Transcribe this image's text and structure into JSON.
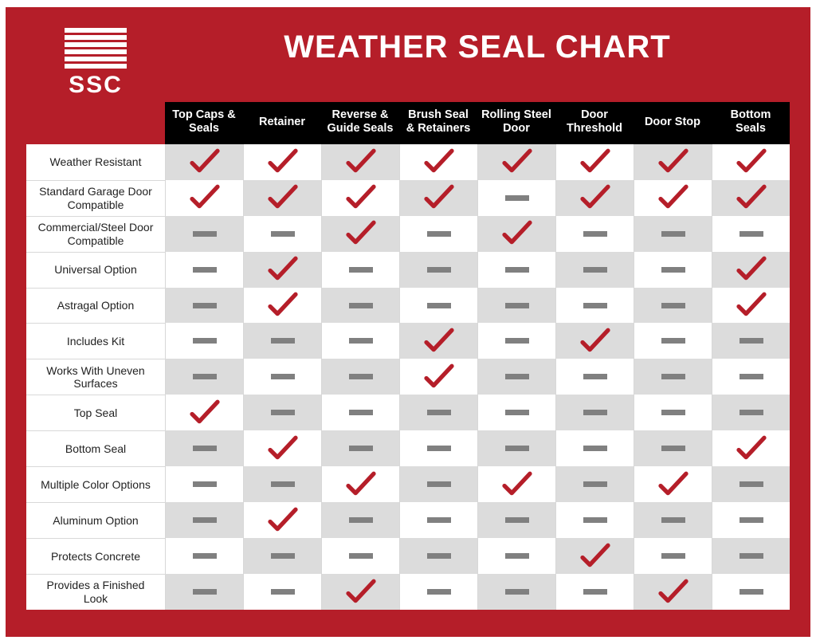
{
  "title": "WEATHER SEAL CHART",
  "logo_text": "SSC",
  "colors": {
    "frame_bg": "#b51e29",
    "header_bg": "#000000",
    "header_text": "#ffffff",
    "row_label_bg": "#ffffff",
    "row_label_text": "#222222",
    "cell_even_bg": "#dcdcdc",
    "cell_odd_bg": "#ffffff",
    "cell_border": "#d8d8d8",
    "check_color": "#b51e29",
    "dash_color": "#808080"
  },
  "columns": [
    "Top Caps & Seals",
    "Retainer",
    "Reverse & Guide Seals",
    "Brush Seal & Retainers",
    "Rolling Steel Door",
    "Door Threshold",
    "Door Stop",
    "Bottom Seals"
  ],
  "rows": [
    {
      "label": "Weather Resistant",
      "cells": [
        true,
        true,
        true,
        true,
        true,
        true,
        true,
        true
      ]
    },
    {
      "label": "Standard Garage Door Compatible",
      "cells": [
        true,
        true,
        true,
        true,
        false,
        true,
        true,
        true
      ]
    },
    {
      "label": "Commercial/Steel Door Compatible",
      "cells": [
        false,
        false,
        true,
        false,
        true,
        false,
        false,
        false
      ]
    },
    {
      "label": "Universal Option",
      "cells": [
        false,
        true,
        false,
        false,
        false,
        false,
        false,
        true
      ]
    },
    {
      "label": "Astragal Option",
      "cells": [
        false,
        true,
        false,
        false,
        false,
        false,
        false,
        true
      ]
    },
    {
      "label": "Includes Kit",
      "cells": [
        false,
        false,
        false,
        true,
        false,
        true,
        false,
        false
      ]
    },
    {
      "label": "Works With Uneven Surfaces",
      "cells": [
        false,
        false,
        false,
        true,
        false,
        false,
        false,
        false
      ]
    },
    {
      "label": "Top Seal",
      "cells": [
        true,
        false,
        false,
        false,
        false,
        false,
        false,
        false
      ]
    },
    {
      "label": "Bottom Seal",
      "cells": [
        false,
        true,
        false,
        false,
        false,
        false,
        false,
        true
      ]
    },
    {
      "label": "Multiple Color Options",
      "cells": [
        false,
        false,
        true,
        false,
        true,
        false,
        true,
        false
      ]
    },
    {
      "label": "Aluminum Option",
      "cells": [
        false,
        true,
        false,
        false,
        false,
        false,
        false,
        false
      ]
    },
    {
      "label": "Protects Concrete",
      "cells": [
        false,
        false,
        false,
        false,
        false,
        true,
        false,
        false
      ]
    },
    {
      "label": "Provides a Finished Look",
      "cells": [
        false,
        false,
        true,
        false,
        false,
        false,
        true,
        false
      ]
    }
  ]
}
